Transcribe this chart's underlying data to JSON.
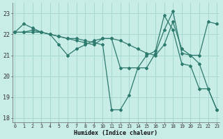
{
  "xlabel": "Humidex (Indice chaleur)",
  "bg_color": "#c8ece6",
  "grid_color": "#a8d8d0",
  "line_color": "#2d7a6e",
  "xlim": [
    -0.3,
    23.3
  ],
  "ylim": [
    17.8,
    23.5
  ],
  "yticks": [
    18,
    19,
    20,
    21,
    22,
    23
  ],
  "xticks": [
    0,
    1,
    2,
    3,
    4,
    5,
    6,
    7,
    8,
    9,
    10,
    11,
    12,
    13,
    14,
    15,
    16,
    17,
    18,
    19,
    20,
    21,
    22,
    23
  ],
  "series1_x": [
    0,
    1,
    2,
    3,
    4,
    5,
    6,
    7,
    8,
    9,
    10,
    11,
    12,
    13,
    14,
    15,
    16,
    17,
    18,
    19,
    20,
    21,
    22,
    23
  ],
  "series1_y": [
    22.1,
    22.5,
    22.3,
    22.1,
    22.0,
    21.5,
    21.0,
    21.3,
    21.5,
    21.7,
    21.8,
    21.8,
    20.4,
    20.4,
    20.4,
    20.4,
    21.1,
    22.2,
    23.1,
    21.1,
    21.0,
    20.6,
    19.4,
    18.4
  ],
  "series2_x": [
    0,
    1,
    2,
    3,
    4,
    5,
    6,
    7,
    8,
    9,
    10,
    11,
    12,
    13,
    14,
    15,
    16,
    17,
    18,
    19,
    20,
    21,
    22,
    23
  ],
  "series2_y": [
    22.1,
    22.1,
    22.2,
    22.1,
    22.0,
    21.9,
    21.8,
    21.7,
    21.6,
    21.5,
    21.8,
    21.8,
    21.7,
    21.5,
    21.3,
    21.1,
    21.0,
    21.5,
    22.6,
    21.3,
    21.0,
    21.0,
    22.6,
    22.5
  ],
  "series3_x": [
    0,
    1,
    2,
    3,
    4,
    5,
    6,
    7,
    8,
    9,
    10,
    11,
    12,
    13,
    14,
    15,
    16,
    17,
    18,
    19,
    20,
    21,
    22,
    23
  ],
  "series3_y": [
    22.1,
    22.1,
    22.1,
    22.1,
    22.0,
    21.9,
    21.8,
    21.8,
    21.7,
    21.6,
    21.5,
    18.4,
    18.4,
    19.1,
    20.4,
    21.0,
    21.2,
    22.9,
    22.2,
    20.6,
    20.5,
    19.4,
    19.4,
    18.4
  ]
}
